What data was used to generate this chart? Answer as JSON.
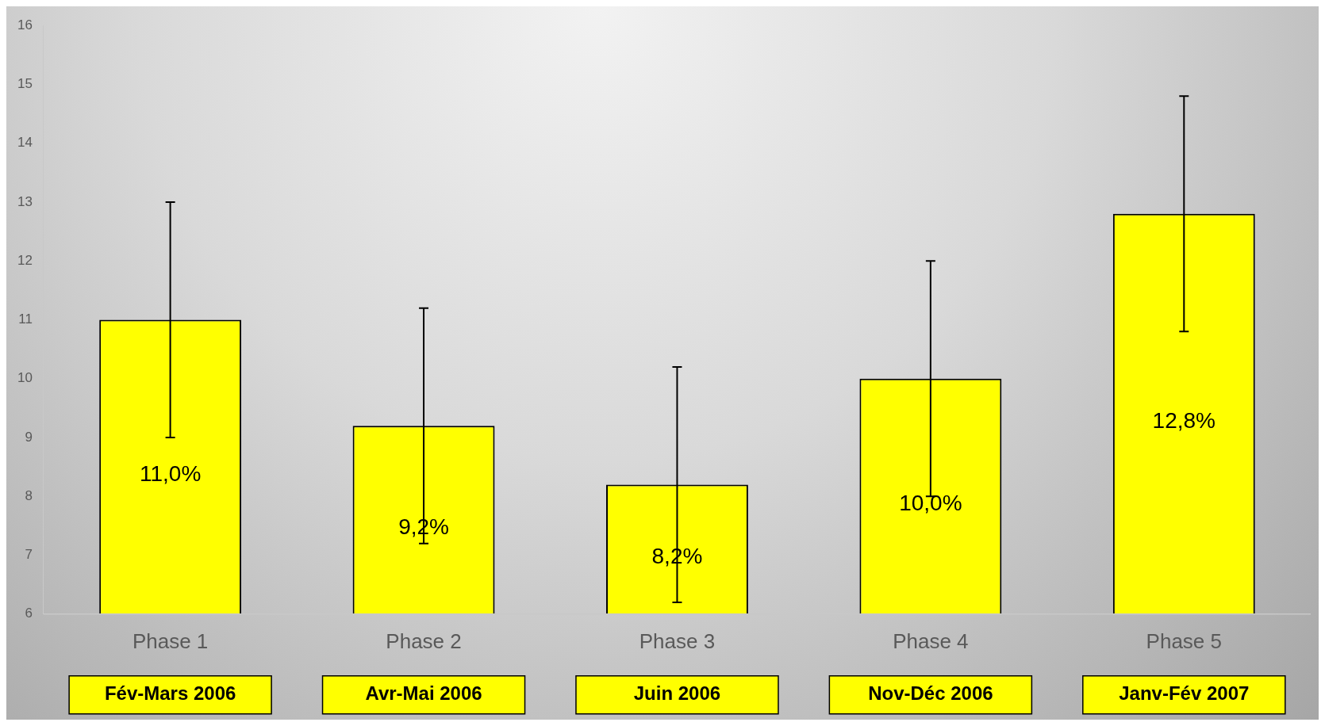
{
  "chart_data": {
    "type": "bar",
    "categories": [
      "Phase 1",
      "Phase 2",
      "Phase 3",
      "Phase 4",
      "Phase 5"
    ],
    "values": [
      11.0,
      9.2,
      8.2,
      10.0,
      12.8
    ],
    "errors": [
      2.0,
      2.0,
      2.0,
      2.0,
      2.0
    ],
    "value_labels": [
      "11,0%",
      "9,2%",
      "8,2%",
      "10,0%",
      "12,8%"
    ],
    "color": "#ffff00",
    "ylim": [
      6,
      16
    ],
    "yticks": [
      6,
      7,
      8,
      9,
      10,
      11,
      12,
      13,
      14,
      15,
      16
    ],
    "annotations": [
      "Fév-Mars 2006",
      "Avr-Mai 2006",
      "Juin 2006",
      "Nov-Déc 2006",
      "Janv-Fév 2007"
    ],
    "grid": false,
    "legend": false
  }
}
